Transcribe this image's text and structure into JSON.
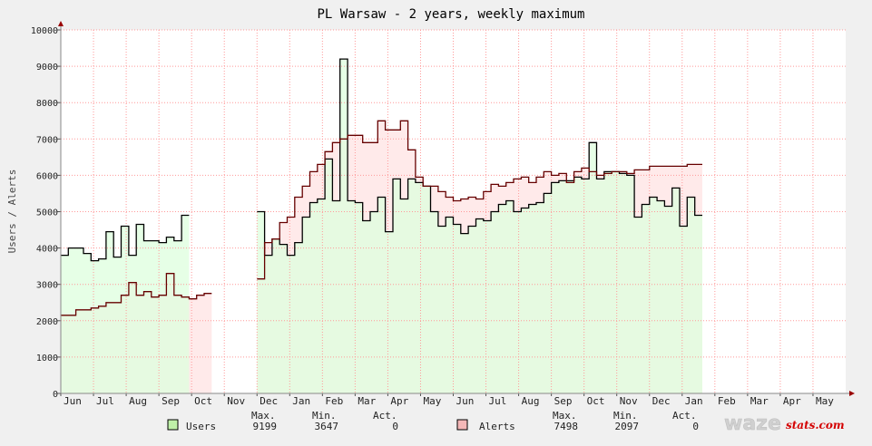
{
  "chart_data": {
    "type": "line",
    "title": "PL Warsaw - 2 years, weekly maximum",
    "ylabel": "Users / Alerts",
    "ylim": [
      0,
      10000
    ],
    "yticks": [
      0,
      1000,
      2000,
      3000,
      4000,
      5000,
      6000,
      7000,
      8000,
      9000,
      10000
    ],
    "grid": true,
    "x_month_labels": [
      "Jun",
      "Jul",
      "Aug",
      "Sep",
      "Oct",
      "Nov",
      "Dec",
      "Jan",
      "Feb",
      "Mar",
      "Apr",
      "May",
      "Jun",
      "Jul",
      "Aug",
      "Sep",
      "Oct",
      "Nov",
      "Dec",
      "Jan",
      "Feb",
      "Mar",
      "Apr",
      "May"
    ],
    "x_range_weeks": [
      0,
      104
    ],
    "series": [
      {
        "name": "Users",
        "color": "#000000",
        "fill": "#ddffdd",
        "values": [
          3800,
          4000,
          4000,
          3850,
          3650,
          3700,
          4450,
          3750,
          4600,
          3800,
          4650,
          4200,
          4200,
          4150,
          4300,
          4200,
          4900,
          null,
          null,
          null,
          null,
          null,
          null,
          null,
          null,
          null,
          5000,
          3800,
          4250,
          4100,
          3800,
          4150,
          4850,
          5250,
          5350,
          6450,
          5300,
          9199,
          5300,
          5250,
          4750,
          5000,
          5400,
          4450,
          5900,
          5350,
          5900,
          5800,
          5700,
          5000,
          4600,
          4850,
          4650,
          4400,
          4600,
          4800,
          4750,
          5000,
          5200,
          5300,
          5000,
          5100,
          5200,
          5250,
          5500,
          5800,
          5850,
          5850,
          5950,
          5900,
          6900,
          5900,
          6100,
          6100,
          6050,
          6000,
          4850,
          5200,
          5400,
          5300,
          5150,
          5650,
          4600,
          5400,
          4900
        ],
        "legend": {
          "label": "Users",
          "max": "9199",
          "min": "3647",
          "act": "0"
        }
      },
      {
        "name": "Alerts",
        "color": "#660000",
        "fill": "#ffe8e8",
        "values": [
          2150,
          2150,
          2300,
          2300,
          2350,
          2400,
          2500,
          2500,
          2700,
          3050,
          2700,
          2800,
          2650,
          2700,
          3300,
          2700,
          2650,
          2600,
          2700,
          2750,
          null,
          null,
          null,
          null,
          null,
          null,
          3150,
          4150,
          4250,
          4700,
          4850,
          5400,
          5700,
          6100,
          6300,
          6650,
          6900,
          7000,
          7100,
          7100,
          6900,
          6900,
          7498,
          7250,
          7250,
          7498,
          6700,
          5950,
          5700,
          5700,
          5550,
          5400,
          5300,
          5350,
          5400,
          5350,
          5550,
          5750,
          5700,
          5800,
          5900,
          5950,
          5800,
          5950,
          6100,
          6000,
          6050,
          5800,
          6100,
          6200,
          6100,
          6000,
          6050,
          6100,
          6100,
          6050,
          6150,
          6150,
          6250,
          6250,
          6250,
          6250,
          6250,
          6300,
          6300
        ],
        "legend": {
          "label": "Alerts",
          "max": "7498",
          "min": "2097",
          "act": "0"
        }
      }
    ],
    "legend_headers": {
      "max": "Max.",
      "min": "Min.",
      "act": "Act."
    },
    "weekend_shading_weeks": [
      [
        26,
        28
      ],
      [
        30,
        31
      ],
      [
        37,
        38
      ],
      [
        47,
        50
      ],
      [
        69,
        71
      ]
    ]
  },
  "logo": {
    "part1": "waze",
    "part2": "stats.com",
    "color1": "#cccccc",
    "color2": "#d40000"
  },
  "colors": {
    "background": "#f0f0f0",
    "plot": "#ffffff",
    "grid": "#ff9999",
    "axis": "#888888",
    "arrow": "#990000"
  }
}
